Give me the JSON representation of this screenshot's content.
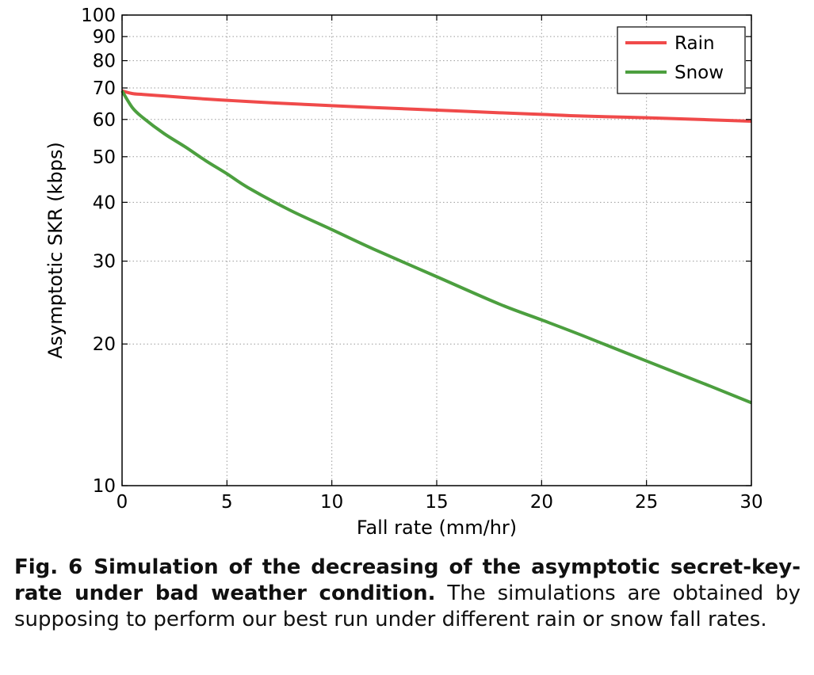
{
  "chart_data": {
    "type": "line",
    "xlabel": "Fall rate (mm/hr)",
    "ylabel": "Asymptotic SKR (kbps)",
    "xlim": [
      0,
      30
    ],
    "ylim": [
      10,
      100
    ],
    "yscale": "log",
    "grid": true,
    "legend_position": "top-right",
    "x_ticks": [
      0,
      5,
      10,
      15,
      20,
      25,
      30
    ],
    "y_ticks": [
      10,
      20,
      30,
      40,
      50,
      60,
      70,
      80,
      90,
      100
    ],
    "x": [
      0,
      0.5,
      1,
      2,
      3,
      4,
      5,
      6,
      8,
      10,
      12,
      15,
      18,
      20,
      22,
      25,
      28,
      30
    ],
    "series": [
      {
        "name": "Rain",
        "color": "#f04a4a",
        "values": [
          69.0,
          68.1,
          67.8,
          67.3,
          66.8,
          66.3,
          65.9,
          65.5,
          64.8,
          64.2,
          63.6,
          62.8,
          62.0,
          61.5,
          61.0,
          60.5,
          59.9,
          59.5
        ]
      },
      {
        "name": "Snow",
        "color": "#4c9f3f",
        "values": [
          69.0,
          63.5,
          60.5,
          56.0,
          52.5,
          49.0,
          46.0,
          43.0,
          38.5,
          35.0,
          31.8,
          27.8,
          24.3,
          22.5,
          20.8,
          18.4,
          16.3,
          15.0
        ]
      }
    ]
  },
  "caption": {
    "label": "Fig. 6",
    "title": "Simulation of the decreasing of the asymptotic secret-key-rate under bad weather condition.",
    "text": " The simulations are obtained by supposing to perform our best run under different rain or snow fall rates."
  }
}
